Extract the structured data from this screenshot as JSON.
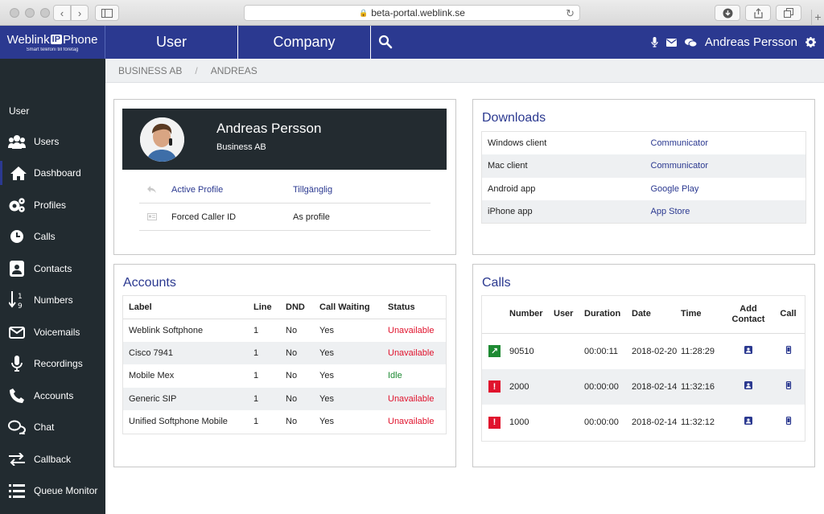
{
  "browser": {
    "url": "beta-portal.weblink.se"
  },
  "logo": {
    "name_left": "Weblink",
    "name_mid": "IP",
    "name_right": "Phone",
    "tagline": "Smart telefoni till företag"
  },
  "topnav": {
    "tab_user": "User",
    "tab_company": "Company",
    "username": "Andreas Persson"
  },
  "breadcrumb": {
    "items": [
      "BUSINESS AB",
      "ANDREAS"
    ],
    "separator": "/"
  },
  "sidebar": {
    "header": "User",
    "items": [
      {
        "label": "Users",
        "icon": "users-icon"
      },
      {
        "label": "Dashboard",
        "icon": "home-icon"
      },
      {
        "label": "Profiles",
        "icon": "gears-icon"
      },
      {
        "label": "Calls",
        "icon": "clock-icon"
      },
      {
        "label": "Contacts",
        "icon": "contact-card-icon"
      },
      {
        "label": "Numbers",
        "icon": "sort-numeric-icon"
      },
      {
        "label": "Voicemails",
        "icon": "envelope-icon"
      },
      {
        "label": "Recordings",
        "icon": "microphone-icon"
      },
      {
        "label": "Accounts",
        "icon": "phone-icon"
      },
      {
        "label": "Chat",
        "icon": "chat-icon"
      },
      {
        "label": "Callback",
        "icon": "exchange-icon"
      },
      {
        "label": "Queue Monitor",
        "icon": "list-icon"
      }
    ]
  },
  "profile": {
    "name": "Andreas Persson",
    "company": "Business AB",
    "rows": [
      {
        "label": "Active Profile",
        "value": "Tillgänglig",
        "icon": "reply-icon"
      },
      {
        "label": "Forced Caller ID",
        "value": "As profile",
        "icon": "id-card-icon"
      }
    ]
  },
  "downloads": {
    "title": "Downloads",
    "rows": [
      {
        "name": "Windows client",
        "link": "Communicator"
      },
      {
        "name": "Mac client",
        "link": "Communicator"
      },
      {
        "name": "Android app",
        "link": "Google Play"
      },
      {
        "name": "iPhone app",
        "link": "App Store"
      }
    ]
  },
  "accounts": {
    "title": "Accounts",
    "columns": [
      "Label",
      "Line",
      "DND",
      "Call Waiting",
      "Status"
    ],
    "rows": [
      {
        "label": "Weblink Softphone",
        "line": "1",
        "dnd": "No",
        "call_waiting": "Yes",
        "status": "Unavailable"
      },
      {
        "label": "Cisco 7941",
        "line": "1",
        "dnd": "No",
        "call_waiting": "Yes",
        "status": "Unavailable"
      },
      {
        "label": "Mobile Mex",
        "line": "1",
        "dnd": "No",
        "call_waiting": "Yes",
        "status": "Idle"
      },
      {
        "label": "Generic SIP",
        "line": "1",
        "dnd": "No",
        "call_waiting": "Yes",
        "status": "Unavailable"
      },
      {
        "label": "Unified Softphone Mobile",
        "line": "1",
        "dnd": "No",
        "call_waiting": "Yes",
        "status": "Unavailable"
      }
    ]
  },
  "calls": {
    "title": "Calls",
    "columns": [
      "Number",
      "User",
      "Duration",
      "Date",
      "Time",
      "Add Contact",
      "Call"
    ],
    "rows": [
      {
        "direction": "outgoing",
        "number": "90510",
        "user": "",
        "duration": "00:00:11",
        "date": "2018-02-20",
        "time": "11:28:29"
      },
      {
        "direction": "missed",
        "number": "2000",
        "user": "",
        "duration": "00:00:00",
        "date": "2018-02-14",
        "time": "11:32:16"
      },
      {
        "direction": "missed",
        "number": "1000",
        "user": "",
        "duration": "00:00:00",
        "date": "2018-02-14",
        "time": "11:32:12"
      }
    ]
  },
  "colors": {
    "brand": "#2b3990",
    "sidebar": "#222b30",
    "unavailable": "#e0132d",
    "idle": "#1e8a33"
  }
}
